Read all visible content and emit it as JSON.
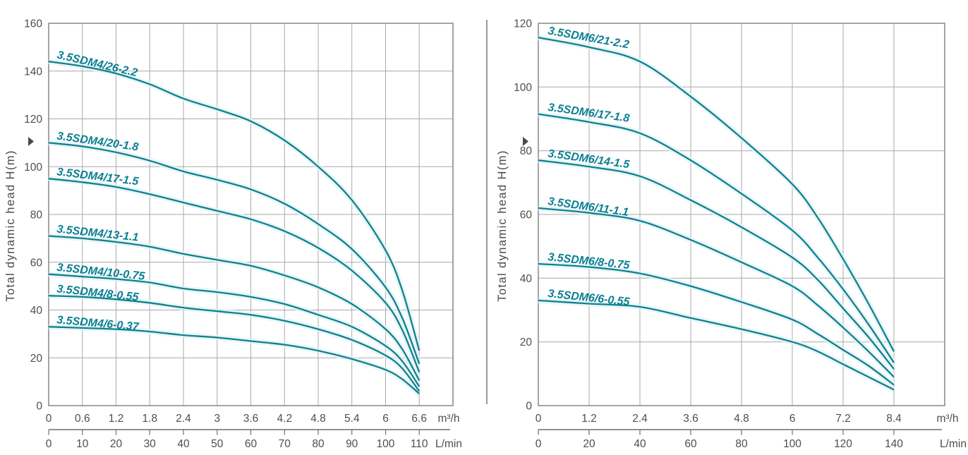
{
  "colors": {
    "background": "#ffffff",
    "curve": "#0d838c",
    "curve_halo": "#e4f2f8",
    "curve_label": "#0a7f92",
    "grid": "#a9a9a9",
    "plot_border": "#8d8d8d",
    "tick_text": "#4e4e4e",
    "axis_title_text": "#4a4a4a",
    "lmin_axis_line": "#6f6f6f",
    "divider": "#9a9a9a"
  },
  "y_axis_arrow_glyph": "▸",
  "chart_data": [
    {
      "type": "line",
      "name": "3.5SDM4 pump family head-flow curves",
      "title": "",
      "ylabel": "Total dynamic head H(m)",
      "xlabel": "",
      "x_unit_primary": "m³/h",
      "x_unit_secondary": "L/min",
      "xlim_m3h": [
        0,
        6.6
      ],
      "xlim_lmin": [
        0,
        110
      ],
      "ylim": [
        0,
        160
      ],
      "grid": true,
      "legend_position": "inline-labels-on-curves",
      "y_ticks": [
        "0",
        "20",
        "40",
        "60",
        "80",
        "100",
        "120",
        "140",
        "160"
      ],
      "x_ticks_m3h": [
        "0",
        "0.6",
        "1.2",
        "1.8",
        "2.4",
        "3",
        "3.6",
        "4.2",
        "4.8",
        "5.4",
        "6",
        "6.6"
      ],
      "x_ticks_lmin": [
        "0",
        "10",
        "20",
        "30",
        "40",
        "50",
        "60",
        "70",
        "80",
        "90",
        "100",
        "110"
      ],
      "series": [
        {
          "name": "3.5SDM4/26-2.2",
          "label_rot_deg": 13,
          "points": [
            [
              0,
              144
            ],
            [
              0.6,
              142
            ],
            [
              1.2,
              139
            ],
            [
              1.8,
              134.5
            ],
            [
              2.4,
              128.5
            ],
            [
              3,
              124
            ],
            [
              3.6,
              119
            ],
            [
              4.2,
              111
            ],
            [
              4.8,
              100
            ],
            [
              5.4,
              86
            ],
            [
              6,
              65
            ],
            [
              6.3,
              48
            ],
            [
              6.6,
              23
            ]
          ]
        },
        {
          "name": "3.5SDM4/20-1.8",
          "label_rot_deg": 8,
          "points": [
            [
              0,
              110
            ],
            [
              0.6,
              108.5
            ],
            [
              1.2,
              106
            ],
            [
              1.8,
              102.5
            ],
            [
              2.4,
              98
            ],
            [
              3,
              94.5
            ],
            [
              3.6,
              90.5
            ],
            [
              4.2,
              84.5
            ],
            [
              4.8,
              76
            ],
            [
              5.4,
              65.5
            ],
            [
              6,
              49.5
            ],
            [
              6.3,
              36.5
            ],
            [
              6.6,
              17.5
            ]
          ]
        },
        {
          "name": "3.5SDM4/17-1.5",
          "label_rot_deg": 7,
          "points": [
            [
              0,
              95
            ],
            [
              0.6,
              93.5
            ],
            [
              1.2,
              91.5
            ],
            [
              1.8,
              88.5
            ],
            [
              2.4,
              85
            ],
            [
              3,
              81.5
            ],
            [
              3.6,
              78
            ],
            [
              4.2,
              73
            ],
            [
              4.8,
              66
            ],
            [
              5.4,
              56.5
            ],
            [
              6,
              43
            ],
            [
              6.3,
              31.5
            ],
            [
              6.6,
              14
            ]
          ]
        },
        {
          "name": "3.5SDM4/13-1.1",
          "label_rot_deg": 6,
          "points": [
            [
              0,
              71
            ],
            [
              0.6,
              70
            ],
            [
              1.2,
              68.5
            ],
            [
              1.8,
              66.5
            ],
            [
              2.4,
              63.5
            ],
            [
              3,
              61
            ],
            [
              3.6,
              58.5
            ],
            [
              4.2,
              54.5
            ],
            [
              4.8,
              49.5
            ],
            [
              5.4,
              42.5
            ],
            [
              6,
              32
            ],
            [
              6.3,
              23.5
            ],
            [
              6.6,
              10.5
            ]
          ]
        },
        {
          "name": "3.5SDM4/10-0.75",
          "label_rot_deg": 6,
          "points": [
            [
              0,
              55
            ],
            [
              0.6,
              54
            ],
            [
              1.2,
              53
            ],
            [
              1.8,
              51.5
            ],
            [
              2.4,
              49
            ],
            [
              3,
              47.5
            ],
            [
              3.6,
              45.5
            ],
            [
              4.2,
              42.5
            ],
            [
              4.8,
              38
            ],
            [
              5.4,
              33
            ],
            [
              6,
              25
            ],
            [
              6.3,
              18.5
            ],
            [
              6.6,
              8
            ]
          ]
        },
        {
          "name": "3.5SDM4/8-0.55",
          "label_rot_deg": 6,
          "points": [
            [
              0,
              46
            ],
            [
              0.6,
              45.5
            ],
            [
              1.2,
              44.5
            ],
            [
              1.8,
              43
            ],
            [
              2.4,
              41
            ],
            [
              3,
              39.5
            ],
            [
              3.6,
              38
            ],
            [
              4.2,
              35.5
            ],
            [
              4.8,
              32
            ],
            [
              5.4,
              27.5
            ],
            [
              6,
              21
            ],
            [
              6.3,
              15.5
            ],
            [
              6.6,
              6
            ]
          ]
        },
        {
          "name": "3.5SDM4/6-0.37",
          "label_rot_deg": 5,
          "points": [
            [
              0,
              33
            ],
            [
              0.6,
              32.5
            ],
            [
              1.2,
              32
            ],
            [
              1.8,
              31
            ],
            [
              2.4,
              29.5
            ],
            [
              3,
              28.5
            ],
            [
              3.6,
              27
            ],
            [
              4.2,
              25.5
            ],
            [
              4.8,
              23
            ],
            [
              5.4,
              19.5
            ],
            [
              6,
              15
            ],
            [
              6.3,
              11
            ],
            [
              6.6,
              5
            ]
          ]
        }
      ]
    },
    {
      "type": "line",
      "name": "3.5SDM6 pump family head-flow curves",
      "title": "",
      "ylabel": "Total dynamic head H(m)",
      "xlabel": "",
      "x_unit_primary": "m³/h",
      "x_unit_secondary": "L/min",
      "xlim_m3h": [
        0,
        8.4
      ],
      "xlim_lmin": [
        0,
        140
      ],
      "ylim": [
        0,
        120
      ],
      "grid": true,
      "legend_position": "inline-labels-on-curves",
      "y_ticks": [
        "0",
        "20",
        "40",
        "60",
        "80",
        "100",
        "120"
      ],
      "x_ticks_m3h": [
        "0",
        "1.2",
        "2.4",
        "3.6",
        "4.8",
        "6",
        "7.2",
        "8.4"
      ],
      "x_ticks_lmin": [
        "0",
        "20",
        "40",
        "60",
        "80",
        "100",
        "120",
        "140"
      ],
      "series": [
        {
          "name": "3.5SDM6/21-2.2",
          "label_rot_deg": 10,
          "points": [
            [
              0,
              115.5
            ],
            [
              1.2,
              112.5
            ],
            [
              2.4,
              108
            ],
            [
              3.6,
              97
            ],
            [
              4.8,
              84
            ],
            [
              6,
              69.5
            ],
            [
              6.6,
              59
            ],
            [
              7.2,
              46
            ],
            [
              7.8,
              32
            ],
            [
              8.4,
              17
            ]
          ]
        },
        {
          "name": "3.5SDM6/17-1.8",
          "label_rot_deg": 8,
          "points": [
            [
              0,
              91.5
            ],
            [
              1.2,
              89
            ],
            [
              2.4,
              85.5
            ],
            [
              3.6,
              77
            ],
            [
              4.8,
              66.5
            ],
            [
              6,
              55
            ],
            [
              6.6,
              46.5
            ],
            [
              7.2,
              36.5
            ],
            [
              7.8,
              25.5
            ],
            [
              8.4,
              13.5
            ]
          ]
        },
        {
          "name": "3.5SDM6/14-1.5",
          "label_rot_deg": 8,
          "points": [
            [
              0,
              77
            ],
            [
              1.2,
              75
            ],
            [
              2.4,
              72
            ],
            [
              3.6,
              64.5
            ],
            [
              4.8,
              56
            ],
            [
              6,
              46.5
            ],
            [
              6.6,
              39.5
            ],
            [
              7.2,
              30.5
            ],
            [
              7.8,
              21.5
            ],
            [
              8.4,
              11.5
            ]
          ]
        },
        {
          "name": "3.5SDM6/11-1.1",
          "label_rot_deg": 8,
          "points": [
            [
              0,
              62
            ],
            [
              1.2,
              60.5
            ],
            [
              2.4,
              58
            ],
            [
              3.6,
              52
            ],
            [
              4.8,
              45
            ],
            [
              6,
              37.5
            ],
            [
              6.6,
              31.5
            ],
            [
              7.2,
              24.5
            ],
            [
              7.8,
              17
            ],
            [
              8.4,
              9
            ]
          ]
        },
        {
          "name": "3.5SDM6/8-0.75",
          "label_rot_deg": 6,
          "points": [
            [
              0,
              44.5
            ],
            [
              1.2,
              43.5
            ],
            [
              2.4,
              41.5
            ],
            [
              3.6,
              37.5
            ],
            [
              4.8,
              32.5
            ],
            [
              6,
              27
            ],
            [
              6.6,
              22.5
            ],
            [
              7.2,
              17.5
            ],
            [
              7.8,
              12.5
            ],
            [
              8.4,
              6.5
            ]
          ]
        },
        {
          "name": "3.5SDM6/6-0.55",
          "label_rot_deg": 6,
          "points": [
            [
              0,
              33
            ],
            [
              1.2,
              32
            ],
            [
              2.4,
              31
            ],
            [
              3.6,
              27.5
            ],
            [
              4.8,
              24
            ],
            [
              6,
              20
            ],
            [
              6.6,
              17
            ],
            [
              7.2,
              13
            ],
            [
              7.8,
              9
            ],
            [
              8.4,
              5
            ]
          ]
        }
      ]
    }
  ]
}
